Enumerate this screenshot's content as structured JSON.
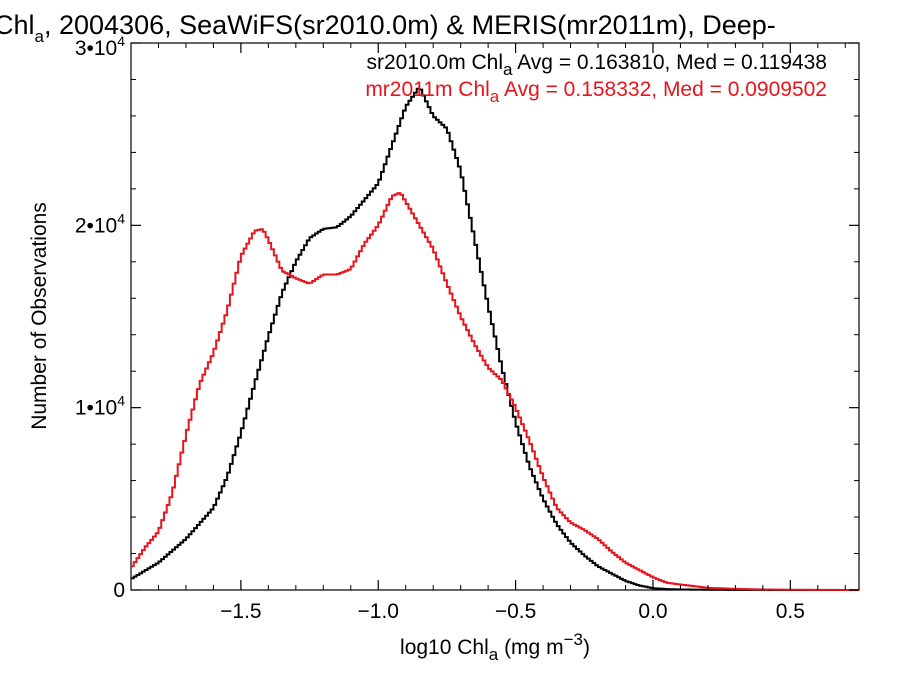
{
  "chart_data": {
    "type": "line",
    "step": true,
    "title": {
      "prefix": "Chl",
      "sub": "a",
      "rest": ", 2004306, SeaWiFS(sr2010.0m) & MERIS(mr2011m), Deep-"
    },
    "xlabel": {
      "prefix": "log10 Chl",
      "sub": "a",
      "mid": " (mg m",
      "sup": "−3",
      "suffix": ")"
    },
    "ylabel": "Number of Observations",
    "xlim": [
      -1.9,
      0.75
    ],
    "ylim": [
      0,
      30000
    ],
    "x_ticks": [
      {
        "value": -1.5,
        "label": "−1.5"
      },
      {
        "value": -1.0,
        "label": "−1.0"
      },
      {
        "value": -0.5,
        "label": "−0.5"
      },
      {
        "value": 0.0,
        "label": "0.0"
      },
      {
        "value": 0.5,
        "label": "0.5"
      }
    ],
    "y_ticks": [
      {
        "value": 0,
        "mant": "0",
        "exp": ""
      },
      {
        "value": 10000,
        "mant": "1•10",
        "exp": "4"
      },
      {
        "value": 20000,
        "mant": "2•10",
        "exp": "4"
      },
      {
        "value": 30000,
        "mant": "3•10",
        "exp": "4"
      }
    ],
    "grid": false,
    "legend_position": "top-right",
    "series": [
      {
        "name": "sr2010.0m",
        "color": "#000000",
        "stats": {
          "prefix": "sr2010.0m Chl",
          "sub": "a",
          "rest": " Avg = 0.163810, Med = 0.119438"
        },
        "x": [
          -1.9,
          -1.8,
          -1.7,
          -1.6,
          -1.55,
          -1.5,
          -1.45,
          -1.4,
          -1.35,
          -1.3,
          -1.25,
          -1.2,
          -1.15,
          -1.1,
          -1.05,
          -1.0,
          -0.95,
          -0.9,
          -0.85,
          -0.8,
          -0.75,
          -0.7,
          -0.65,
          -0.6,
          -0.55,
          -0.5,
          -0.45,
          -0.4,
          -0.35,
          -0.3,
          -0.25,
          -0.2,
          -0.15,
          -0.1,
          -0.05,
          0.0,
          0.05,
          0.1,
          0.2,
          0.3,
          0.4,
          0.5,
          0.6,
          0.75
        ],
        "y": [
          600,
          1500,
          2800,
          4500,
          6200,
          8600,
          11300,
          13900,
          16300,
          18000,
          19300,
          19800,
          19900,
          20500,
          21400,
          22300,
          24400,
          26500,
          27600,
          26000,
          25300,
          23000,
          19300,
          15600,
          12200,
          9200,
          6800,
          5000,
          3600,
          2600,
          1900,
          1300,
          900,
          500,
          250,
          100,
          50,
          30,
          15,
          8,
          4,
          2,
          1,
          0
        ]
      },
      {
        "name": "mr2011m",
        "color": "#e8141c",
        "stats": {
          "prefix": "mr2011m Chl",
          "sub": "a",
          "rest": " Avg = 0.158332, Med = 0.0909502"
        },
        "x": [
          -1.9,
          -1.85,
          -1.8,
          -1.75,
          -1.7,
          -1.65,
          -1.6,
          -1.55,
          -1.5,
          -1.45,
          -1.42,
          -1.4,
          -1.35,
          -1.3,
          -1.25,
          -1.2,
          -1.15,
          -1.1,
          -1.05,
          -1.0,
          -0.95,
          -0.92,
          -0.9,
          -0.85,
          -0.8,
          -0.75,
          -0.7,
          -0.65,
          -0.6,
          -0.55,
          -0.5,
          -0.45,
          -0.4,
          -0.35,
          -0.3,
          -0.25,
          -0.2,
          -0.15,
          -0.1,
          -0.05,
          0.0,
          0.05,
          0.1,
          0.2,
          0.3,
          0.4,
          0.5,
          0.6,
          0.75
        ],
        "y": [
          1200,
          2300,
          3200,
          5300,
          8500,
          11300,
          13000,
          15300,
          18300,
          19700,
          19800,
          19200,
          17500,
          17100,
          16800,
          17300,
          17300,
          17600,
          19000,
          20000,
          21600,
          21800,
          21300,
          20000,
          18700,
          16800,
          15000,
          13500,
          12200,
          11500,
          10000,
          8200,
          6200,
          4500,
          3700,
          3300,
          2800,
          2100,
          1500,
          1100,
          700,
          400,
          300,
          120,
          60,
          30,
          15,
          8,
          0
        ]
      }
    ]
  }
}
